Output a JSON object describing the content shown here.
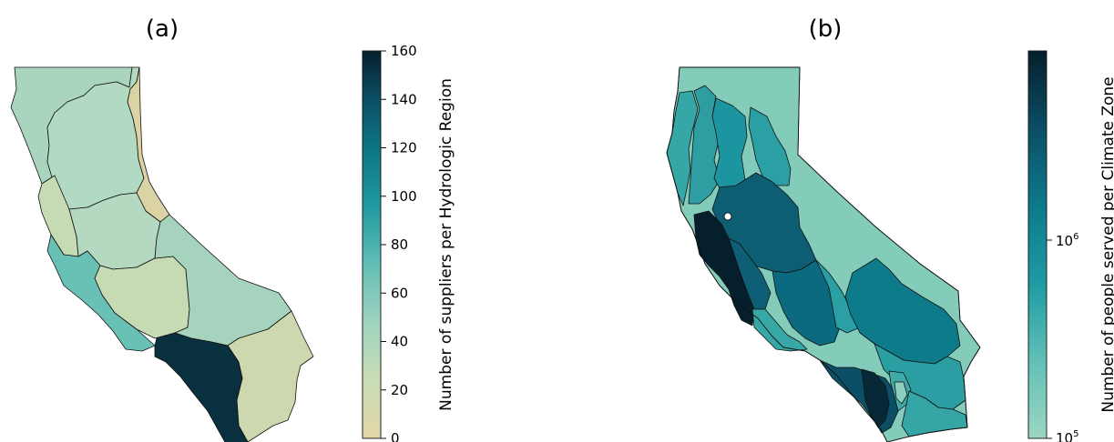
{
  "panels": [
    {
      "id": "a",
      "title": "(a)",
      "colorbar": {
        "label": "Number of suppliers per Hydrologic Region",
        "scale": "linear",
        "range": [
          0,
          160
        ],
        "ticks": [
          "0",
          "20",
          "40",
          "60",
          "80",
          "100",
          "120",
          "140",
          "160"
        ]
      }
    },
    {
      "id": "b",
      "title": "(b)",
      "colorbar": {
        "label": "Number of people served per Climate Zone",
        "scale": "log",
        "ticks": [
          {
            "base": "10",
            "exp": "5"
          },
          {
            "base": "10",
            "exp": "6"
          }
        ]
      }
    }
  ],
  "colors": {
    "colormap": [
      "#e3d6a7",
      "#c6dcb4",
      "#7fc9b7",
      "#38a8a8",
      "#0f7f8c",
      "#0e5a70",
      "#072533"
    ],
    "low": "#e3d6a7",
    "high": "#072533"
  }
}
